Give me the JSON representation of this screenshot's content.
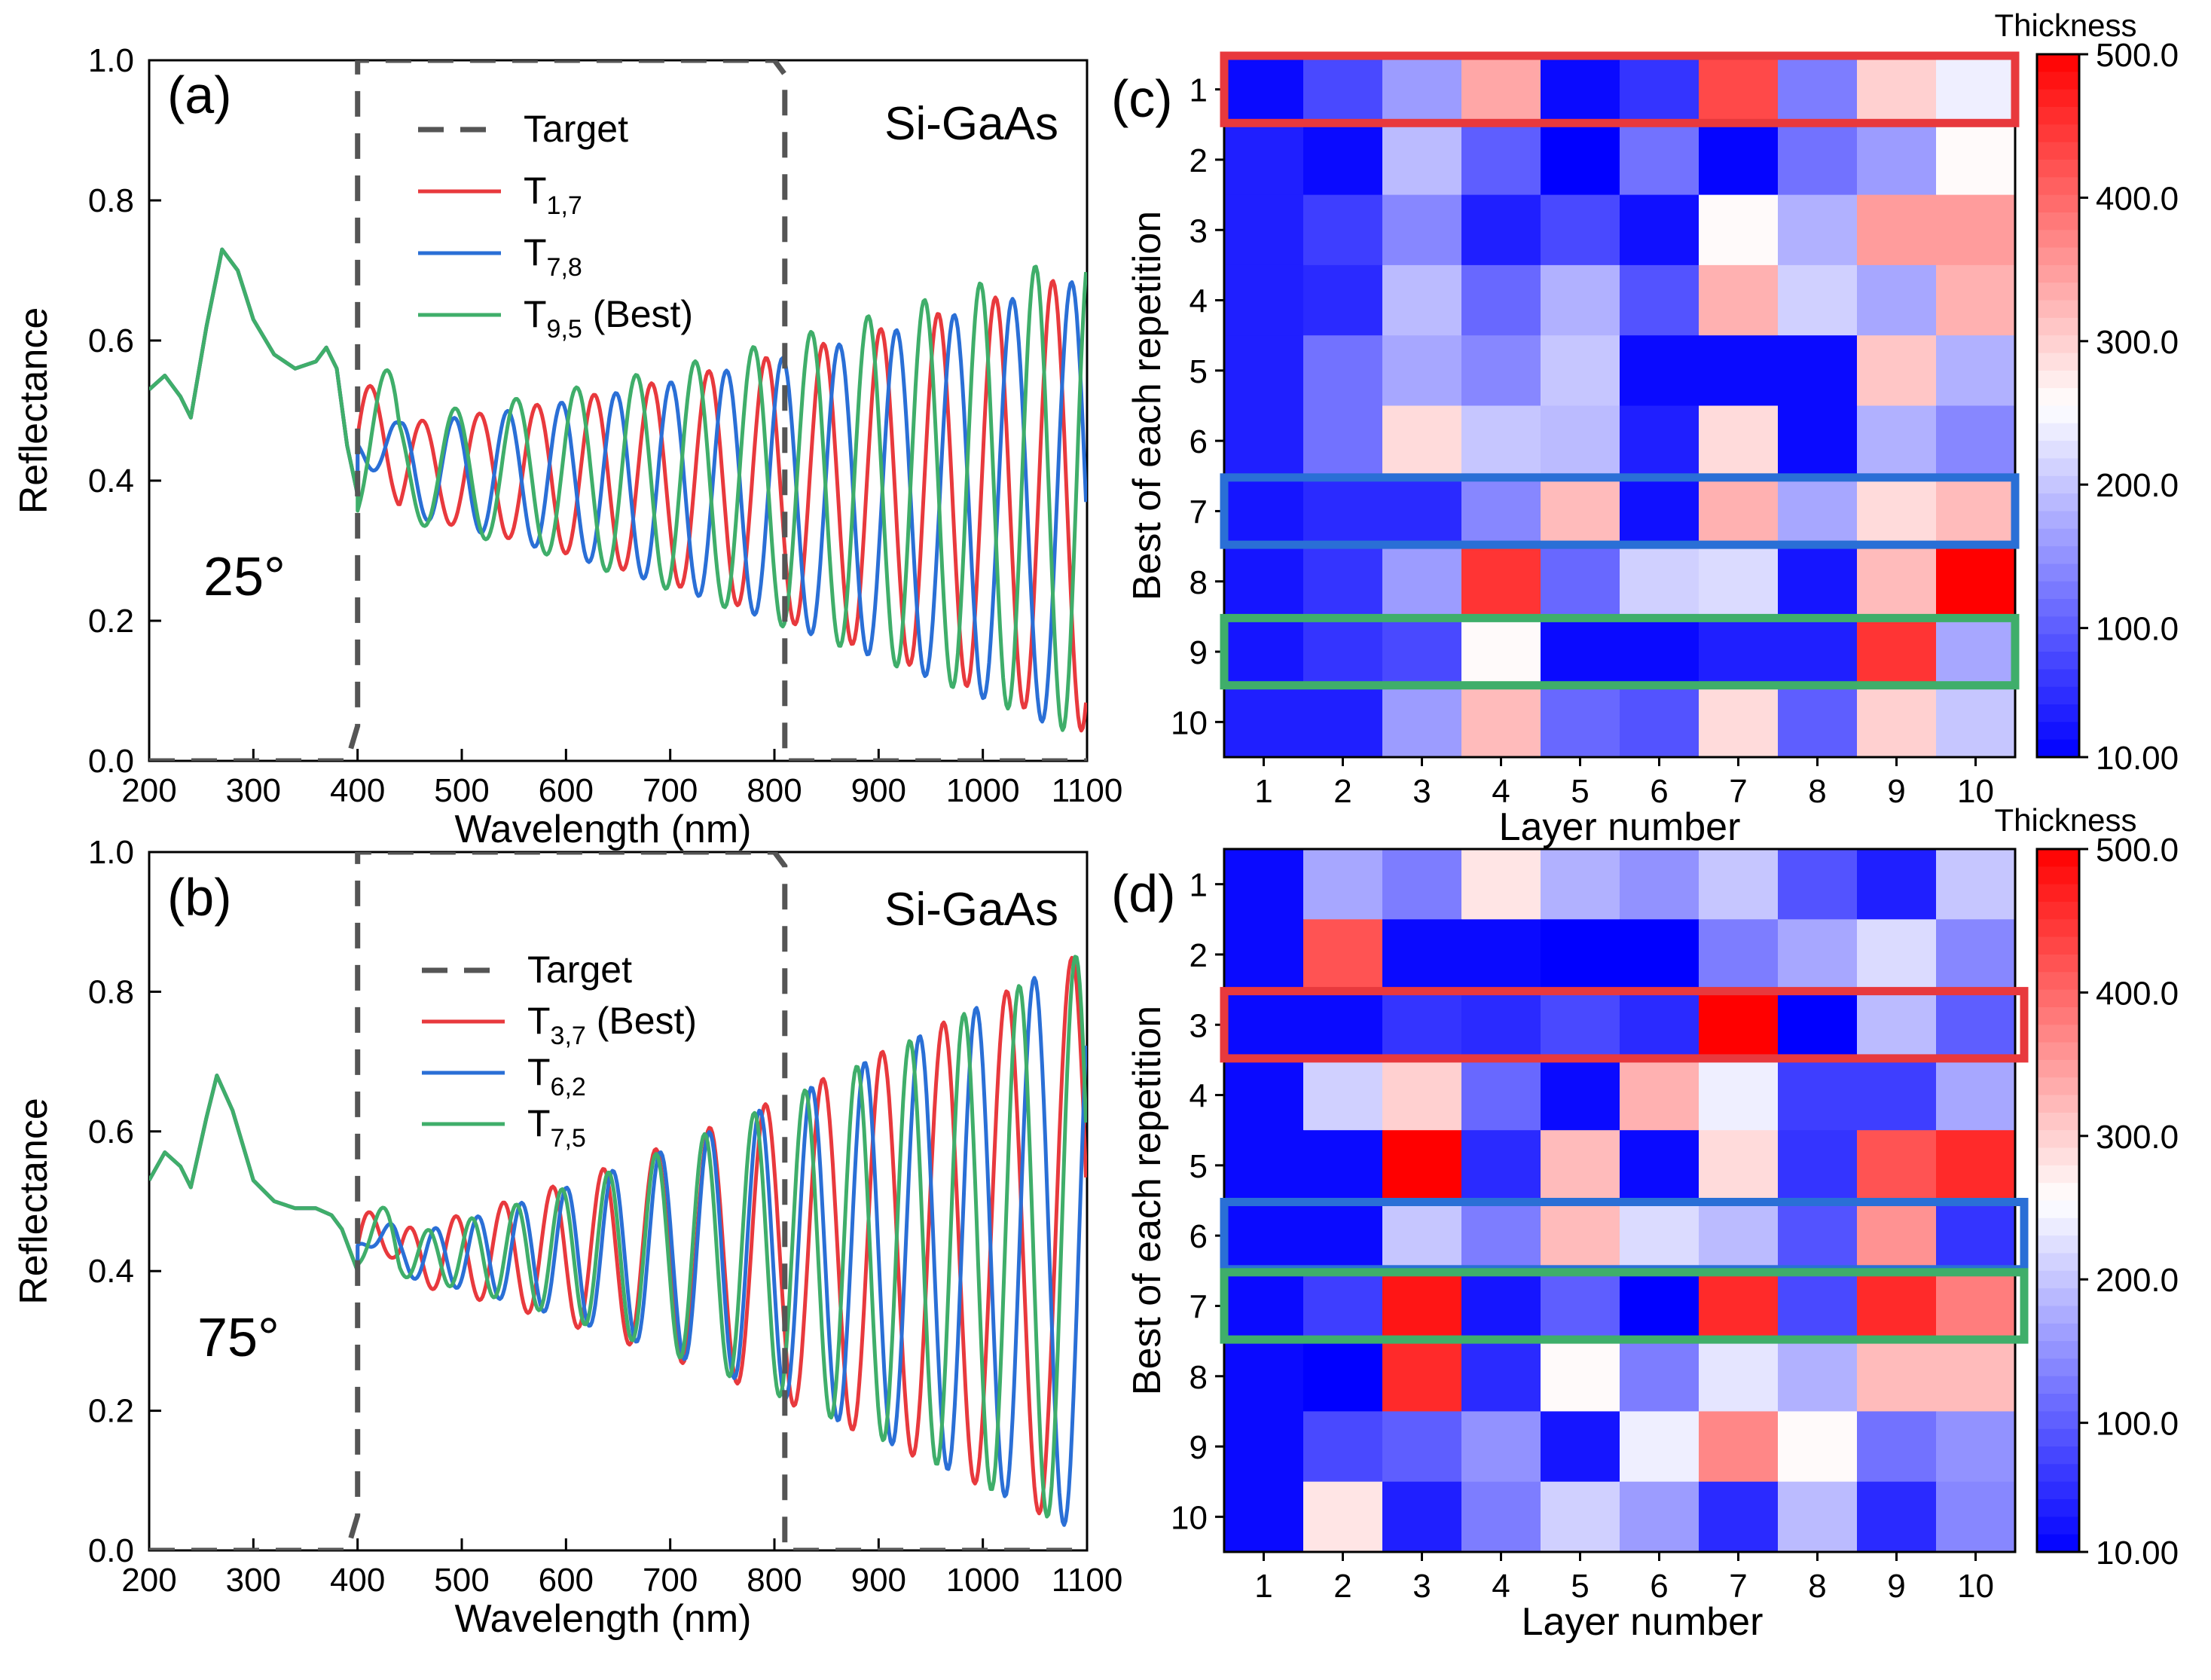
{
  "chart_data": [
    {
      "id": "a",
      "type": "line",
      "panel_label": "(a)",
      "material": "Si-GaAs",
      "angle": "25°",
      "xlabel": "Wavelength (nm)",
      "ylabel": "Reflectance",
      "xlim": [
        200,
        1100
      ],
      "ylim": [
        0.0,
        1.0
      ],
      "xticks": [
        "200",
        "300",
        "400",
        "500",
        "600",
        "700",
        "800",
        "900",
        "1000",
        "1100"
      ],
      "yticks": [
        "0.0",
        "0.2",
        "0.4",
        "0.6",
        "0.8",
        "1.0"
      ],
      "legend": [
        {
          "name": "Target",
          "sub": "",
          "suffix": "",
          "color": "#555555",
          "dashed": true
        },
        {
          "name": "T",
          "sub": "1,7",
          "suffix": "",
          "color": "#e8393d",
          "dashed": false
        },
        {
          "name": "T",
          "sub": "7,8",
          "suffix": "",
          "color": "#2a6fd6",
          "dashed": false
        },
        {
          "name": "T",
          "sub": "9,5",
          "suffix": " (Best)",
          "color": "#3fae6a",
          "dashed": false
        }
      ],
      "target": {
        "x": [
          200,
          390,
          400,
          400,
          800,
          810,
          810,
          1100
        ],
        "y": [
          0,
          0,
          0.05,
          1,
          1,
          0.98,
          0,
          0
        ]
      },
      "base": {
        "x": [
          200,
          215,
          230,
          240,
          255,
          270,
          285,
          300,
          320,
          340,
          360,
          370,
          380,
          390,
          400
        ],
        "y": [
          0.53,
          0.55,
          0.52,
          0.49,
          0.62,
          0.73,
          0.7,
          0.63,
          0.58,
          0.56,
          0.57,
          0.59,
          0.56,
          0.45,
          0.38
        ]
      },
      "series": [
        {
          "name": "T1,7",
          "color": "#e8393d",
          "amp": [
            0.06,
            0.33
          ],
          "mean": [
            0.42,
            0.37
          ],
          "period": [
            55,
            55
          ],
          "phase": 0.6,
          "env": 0.08
        },
        {
          "name": "T7,8",
          "color": "#2a6fd6",
          "amp": [
            0.06,
            0.33
          ],
          "mean": [
            0.42,
            0.36
          ],
          "period": [
            50,
            57
          ],
          "phase": 2.4,
          "env": 0.06
        },
        {
          "name": "T9,5",
          "color": "#3fae6a",
          "amp": [
            0.07,
            0.35
          ],
          "mean": [
            0.42,
            0.38
          ],
          "period": [
            60,
            52
          ],
          "phase": 4.1,
          "env": 0.1
        }
      ]
    },
    {
      "id": "b",
      "type": "line",
      "panel_label": "(b)",
      "material": "Si-GaAs",
      "angle": "75°",
      "xlabel": "Wavelength (nm)",
      "ylabel": "Reflectance",
      "xlim": [
        200,
        1100
      ],
      "ylim": [
        0.0,
        1.0
      ],
      "xticks": [
        "200",
        "300",
        "400",
        "500",
        "600",
        "700",
        "800",
        "900",
        "1000",
        "1100"
      ],
      "yticks": [
        "0.0",
        "0.2",
        "0.4",
        "0.6",
        "0.8",
        "1.0"
      ],
      "legend": [
        {
          "name": "Target",
          "sub": "",
          "suffix": "",
          "color": "#555555",
          "dashed": true
        },
        {
          "name": "T",
          "sub": "3,7",
          "suffix": " (Best)",
          "color": "#e8393d",
          "dashed": false
        },
        {
          "name": "T",
          "sub": "6,2",
          "suffix": "",
          "color": "#2a6fd6",
          "dashed": false
        },
        {
          "name": "T",
          "sub": "7,5",
          "suffix": "",
          "color": "#3fae6a",
          "dashed": false
        }
      ],
      "target": {
        "x": [
          200,
          390,
          400,
          400,
          800,
          810,
          810,
          1100
        ],
        "y": [
          0,
          0,
          0.05,
          1,
          1,
          0.98,
          0,
          0
        ]
      },
      "base": {
        "x": [
          200,
          215,
          230,
          240,
          255,
          265,
          280,
          300,
          320,
          340,
          360,
          375,
          385,
          395,
          400
        ],
        "y": [
          0.53,
          0.57,
          0.55,
          0.52,
          0.62,
          0.68,
          0.63,
          0.53,
          0.5,
          0.49,
          0.49,
          0.48,
          0.46,
          0.42,
          0.4
        ]
      },
      "series": [
        {
          "name": "T3,7",
          "color": "#e8393d",
          "amp": [
            0.03,
            0.42
          ],
          "mean": [
            0.42,
            0.44
          ],
          "period": [
            42,
            64
          ],
          "phase": 0.3,
          "env": 0.05
        },
        {
          "name": "T6,2",
          "color": "#2a6fd6",
          "amp": [
            0.02,
            0.42
          ],
          "mean": [
            0.42,
            0.44
          ],
          "period": [
            38,
            58
          ],
          "phase": 1.9,
          "env": 0.04
        },
        {
          "name": "T7,5",
          "color": "#3fae6a",
          "amp": [
            0.02,
            0.42
          ],
          "mean": [
            0.42,
            0.44
          ],
          "period": [
            40,
            55
          ],
          "phase": 3.5,
          "env": 0.05
        }
      ]
    },
    {
      "id": "c",
      "type": "heatmap",
      "panel_label": "(c)",
      "xlabel": "Layer number",
      "ylabel": "Best of each repetition",
      "x_categories": [
        "1",
        "2",
        "3",
        "4",
        "5",
        "6",
        "7",
        "8",
        "9",
        "10"
      ],
      "y_categories": [
        "1",
        "2",
        "3",
        "4",
        "5",
        "6",
        "7",
        "8",
        "9",
        "10"
      ],
      "colorbar": {
        "title": "Thickness",
        "range": [
          10,
          500
        ],
        "ticks": [
          "10.00",
          "100.0",
          "200.0",
          "300.0",
          "400.0",
          "500.0"
        ]
      },
      "values": [
        [
          20,
          80,
          160,
          340,
          20,
          60,
          430,
          130,
          300,
          240
        ],
        [
          40,
          20,
          190,
          100,
          10,
          120,
          15,
          120,
          160,
          260
        ],
        [
          40,
          70,
          140,
          40,
          80,
          25,
          260,
          180,
          350,
          350
        ],
        [
          40,
          50,
          190,
          110,
          180,
          90,
          330,
          210,
          170,
          330
        ],
        [
          40,
          120,
          170,
          140,
          200,
          20,
          20,
          20,
          310,
          180
        ],
        [
          40,
          120,
          290,
          200,
          190,
          40,
          290,
          20,
          180,
          140
        ],
        [
          30,
          50,
          50,
          140,
          320,
          25,
          330,
          170,
          290,
          320
        ],
        [
          30,
          60,
          160,
          450,
          110,
          210,
          220,
          30,
          320,
          500
        ],
        [
          30,
          60,
          80,
          260,
          20,
          20,
          40,
          40,
          450,
          170
        ],
        [
          40,
          40,
          160,
          320,
          110,
          90,
          290,
          100,
          300,
          200
        ]
      ],
      "highlights": [
        {
          "row": 1,
          "color": "#e8393d"
        },
        {
          "row": 7,
          "color": "#2a6fd6"
        },
        {
          "row": 9,
          "color": "#3fae6a"
        }
      ]
    },
    {
      "id": "d",
      "type": "heatmap",
      "panel_label": "(d)",
      "xlabel": "Layer number",
      "ylabel": "Best of each repetition",
      "x_categories": [
        "1",
        "2",
        "3",
        "4",
        "5",
        "6",
        "7",
        "8",
        "9",
        "10"
      ],
      "y_categories": [
        "1",
        "2",
        "3",
        "4",
        "5",
        "6",
        "7",
        "8",
        "9",
        "10"
      ],
      "colorbar": {
        "title": "Thickness",
        "range": [
          10,
          500
        ],
        "ticks": [
          "10.00",
          "100.0",
          "200.0",
          "300.0",
          "400.0",
          "500.0"
        ]
      },
      "values": [
        [
          20,
          170,
          130,
          280,
          180,
          150,
          200,
          90,
          40,
          200
        ],
        [
          20,
          420,
          20,
          20,
          10,
          10,
          130,
          170,
          220,
          140
        ],
        [
          20,
          20,
          60,
          50,
          80,
          50,
          500,
          10,
          190,
          100
        ],
        [
          20,
          210,
          300,
          110,
          20,
          330,
          240,
          70,
          70,
          170
        ],
        [
          20,
          20,
          500,
          50,
          320,
          20,
          290,
          60,
          420,
          460
        ],
        [
          20,
          20,
          200,
          130,
          320,
          220,
          190,
          90,
          360,
          60
        ],
        [
          20,
          70,
          480,
          30,
          100,
          10,
          460,
          80,
          460,
          380
        ],
        [
          20,
          10,
          460,
          50,
          260,
          130,
          230,
          180,
          320,
          320
        ],
        [
          20,
          80,
          100,
          150,
          30,
          240,
          370,
          260,
          120,
          150
        ],
        [
          20,
          280,
          40,
          130,
          210,
          160,
          50,
          190,
          50,
          140
        ]
      ],
      "highlights": [
        {
          "row": 3,
          "color": "#e8393d"
        },
        {
          "row": 6,
          "color": "#2a6fd6"
        },
        {
          "row": 7,
          "color": "#3fae6a"
        }
      ]
    }
  ]
}
